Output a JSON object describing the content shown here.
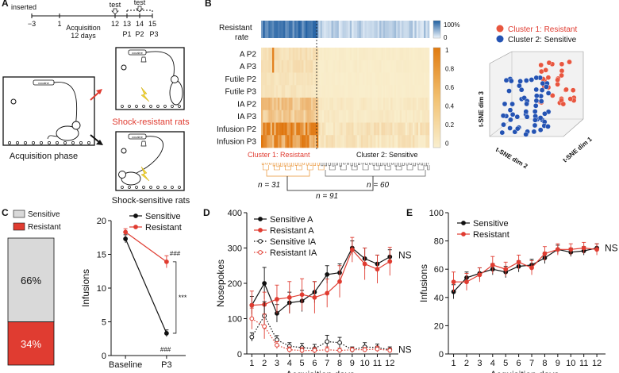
{
  "panel_labels": {
    "A": "A",
    "B": "B",
    "C": "C",
    "D": "D",
    "E": "E"
  },
  "panel_a": {
    "inserted_label": "inserted",
    "timeline_ticks": [
      "−3",
      "1",
      "12",
      "13",
      "14",
      "15"
    ],
    "acquisition_label": "Acquisition",
    "days_label": "12 days",
    "test_labels": [
      "test",
      "test"
    ],
    "period_labels": [
      "P1",
      "P2",
      "P3"
    ],
    "drug_label": "cocaine",
    "acquisition_phase": "Acquisition phase",
    "shock_resistant": "Shock-resistant rats",
    "shock_sensitive": "Shock-sensitive rats",
    "colors": {
      "resistant": "#e03c31",
      "sensitive": "#111111"
    }
  },
  "panel_b": {
    "resistant_rate_label": "Resistant",
    "resistant_rate_label2": "rate",
    "rate_scale": [
      "100%",
      "0"
    ],
    "row_labels": [
      "A P2",
      "A P3",
      "Futile P2",
      "Futile P3",
      "IA P2",
      "IA P3",
      "Infusion P2",
      "Infusion P3"
    ],
    "heat_scale": [
      "1",
      "0.8",
      "0.6",
      "0.4",
      "0.2",
      "0"
    ],
    "cluster1_label": "Cluster 1: Resistant",
    "cluster2_label": "Cluster 2: Sensitive",
    "n_cluster1": "n = 31",
    "n_cluster2": "n = 60",
    "n_total": "n = 91",
    "tsne_legend": [
      "Cluster 1: Resistant",
      "Cluster 2: Sensitive"
    ],
    "tsne_axes": [
      "t-SNE dim 3",
      "t-SNE dim 2",
      "t-SNE dim 1"
    ],
    "colors": {
      "cluster1": "#e8563f",
      "cluster2": "#2453b3",
      "heat_high": "#e07a10",
      "heat_low": "#f8ecc4"
    }
  },
  "chart_data": [
    {
      "type": "bar",
      "panel": "C",
      "categories": [
        "Sensitive",
        "Resistant"
      ],
      "values": [
        66,
        34
      ],
      "labels": [
        "66%",
        "34%"
      ],
      "stacked": true
    },
    {
      "type": "line",
      "panel": "C",
      "categories": [
        "Baseline",
        "P3"
      ],
      "ylabel": "Infusions",
      "ylim": [
        0,
        20
      ],
      "yticks": [
        0,
        5,
        10,
        15,
        20
      ],
      "series": [
        {
          "name": "Sensitive",
          "values": [
            17.3,
            3.3
          ],
          "err": [
            0.6,
            0.5
          ],
          "color": "#111111"
        },
        {
          "name": "Resistant",
          "values": [
            18.3,
            13.9
          ],
          "err": [
            0.5,
            0.9
          ],
          "color": "#e03c31"
        }
      ],
      "annotations": [
        "###",
        "###",
        "***"
      ]
    },
    {
      "type": "line",
      "panel": "D",
      "x": [
        1,
        2,
        3,
        4,
        5,
        6,
        7,
        8,
        9,
        10,
        11,
        12
      ],
      "xlabel": "Acquisition days",
      "ylabel": "Nosepokes",
      "ylim": [
        0,
        400
      ],
      "yticks": [
        0,
        100,
        200,
        300,
        400
      ],
      "series": [
        {
          "name": "Sensitive A",
          "values": [
            138,
            200,
            115,
            145,
            150,
            175,
            225,
            230,
            300,
            270,
            255,
            275
          ],
          "err": [
            25,
            45,
            25,
            30,
            30,
            30,
            25,
            25,
            20,
            30,
            25,
            20
          ],
          "color": "#111111",
          "style": "solid"
        },
        {
          "name": "Resistant A",
          "values": [
            138,
            140,
            155,
            160,
            168,
            160,
            172,
            205,
            295,
            255,
            240,
            262
          ],
          "err": [
            40,
            35,
            40,
            45,
            45,
            45,
            40,
            45,
            35,
            45,
            40,
            40
          ],
          "color": "#e03c31",
          "style": "solid"
        },
        {
          "name": "Sensitive IA",
          "values": [
            48,
            108,
            40,
            22,
            18,
            15,
            35,
            32,
            12,
            20,
            18,
            12
          ],
          "err": [
            12,
            40,
            12,
            10,
            12,
            12,
            18,
            15,
            8,
            12,
            10,
            8
          ],
          "color": "#111111",
          "style": "dotted"
        },
        {
          "name": "Resistant IA",
          "values": [
            100,
            78,
            25,
            12,
            10,
            10,
            12,
            10,
            12,
            12,
            14,
            10
          ],
          "err": [
            30,
            35,
            10,
            8,
            8,
            8,
            8,
            6,
            6,
            6,
            8,
            6
          ],
          "color": "#e03c31",
          "style": "dotted"
        }
      ],
      "annotations": [
        "NS",
        "NS"
      ]
    },
    {
      "type": "line",
      "panel": "E",
      "x": [
        1,
        2,
        3,
        4,
        5,
        6,
        7,
        8,
        9,
        10,
        11,
        12
      ],
      "xlabel": "Acquisition days",
      "ylabel": "Infusions",
      "ylim": [
        0,
        100
      ],
      "yticks": [
        0,
        20,
        40,
        60,
        80,
        100
      ],
      "series": [
        {
          "name": "Sensitive",
          "values": [
            44,
            54,
            57,
            60,
            58,
            62,
            63,
            68,
            74,
            72,
            73,
            75
          ],
          "err": [
            5,
            4,
            4,
            4,
            4,
            4,
            4,
            4,
            3,
            3,
            3,
            3
          ],
          "color": "#111111"
        },
        {
          "name": "Resistant",
          "values": [
            51,
            51,
            56,
            63,
            60,
            65,
            61,
            71,
            74,
            74,
            75,
            74
          ],
          "err": [
            7,
            6,
            5,
            6,
            5,
            5,
            5,
            5,
            4,
            4,
            4,
            4
          ],
          "color": "#e03c31"
        }
      ],
      "annotations": [
        "NS"
      ]
    }
  ]
}
